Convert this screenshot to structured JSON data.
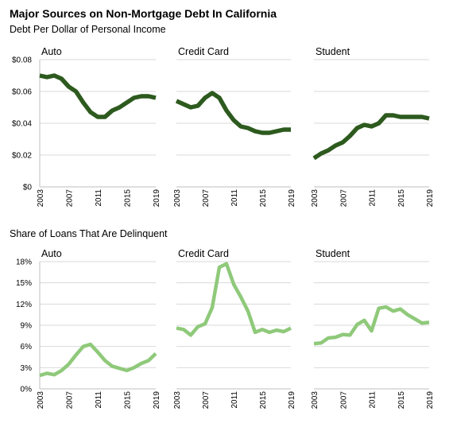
{
  "chart_data": {
    "title": "Major Sources on Non-Mortgage Debt In California",
    "sections": [
      {
        "subtitle": "Debt Per Dollar of Personal Income",
        "type": "line",
        "color": "#2d5a1e",
        "ylim": [
          0,
          0.08
        ],
        "yticks": [
          "$0",
          "$0.02",
          "$0.04",
          "$0.06",
          "$0.08"
        ],
        "ytick_values": [
          0,
          0.02,
          0.04,
          0.06,
          0.08
        ],
        "xticks": [
          "2003",
          "2007",
          "2011",
          "2015",
          "2019"
        ],
        "x": [
          2003,
          2004,
          2005,
          2006,
          2007,
          2008,
          2009,
          2010,
          2011,
          2012,
          2013,
          2014,
          2015,
          2016,
          2017,
          2018,
          2019
        ],
        "panels": [
          {
            "name": "Auto",
            "values": [
              0.07,
              0.069,
              0.07,
              0.068,
              0.063,
              0.06,
              0.053,
              0.047,
              0.044,
              0.044,
              0.048,
              0.05,
              0.053,
              0.056,
              0.057,
              0.057,
              0.056
            ]
          },
          {
            "name": "Credit Card",
            "values": [
              0.054,
              0.052,
              0.05,
              0.051,
              0.056,
              0.059,
              0.056,
              0.048,
              0.042,
              0.038,
              0.037,
              0.035,
              0.034,
              0.034,
              0.035,
              0.036,
              0.036
            ]
          },
          {
            "name": "Student",
            "values": [
              0.018,
              0.021,
              0.023,
              0.026,
              0.028,
              0.032,
              0.037,
              0.039,
              0.038,
              0.04,
              0.045,
              0.045,
              0.044,
              0.044,
              0.044,
              0.044,
              0.043
            ]
          }
        ]
      },
      {
        "subtitle": "Share of Loans That Are Delinquent",
        "type": "line",
        "color": "#8fc97a",
        "ylim": [
          0,
          18
        ],
        "yticks": [
          "0%",
          "3%",
          "6%",
          "9%",
          "12%",
          "15%",
          "18%"
        ],
        "ytick_values": [
          0,
          3,
          6,
          9,
          12,
          15,
          18
        ],
        "xticks": [
          "2003",
          "2007",
          "2011",
          "2015",
          "2019"
        ],
        "x": [
          2003,
          2004,
          2005,
          2006,
          2007,
          2008,
          2009,
          2010,
          2011,
          2012,
          2013,
          2014,
          2015,
          2016,
          2017,
          2018,
          2019
        ],
        "panels": [
          {
            "name": "Auto",
            "values": [
              1.9,
              2.2,
              2.0,
              2.6,
              3.5,
              4.8,
              6.0,
              6.3,
              5.2,
              4.0,
              3.2,
              2.9,
              2.6,
              3.0,
              3.6,
              4.0,
              5.0
            ]
          },
          {
            "name": "Credit Card",
            "values": [
              8.6,
              8.4,
              7.6,
              8.8,
              9.2,
              11.5,
              17.2,
              17.7,
              14.8,
              13.0,
              11.0,
              8.0,
              8.4,
              8.0,
              8.3,
              8.1,
              8.6
            ]
          },
          {
            "name": "Student",
            "values": [
              6.4,
              6.5,
              7.2,
              7.3,
              7.7,
              7.6,
              9.1,
              9.7,
              8.2,
              11.4,
              11.6,
              11.0,
              11.3,
              10.5,
              9.9,
              9.3,
              9.4
            ]
          }
        ]
      }
    ]
  }
}
